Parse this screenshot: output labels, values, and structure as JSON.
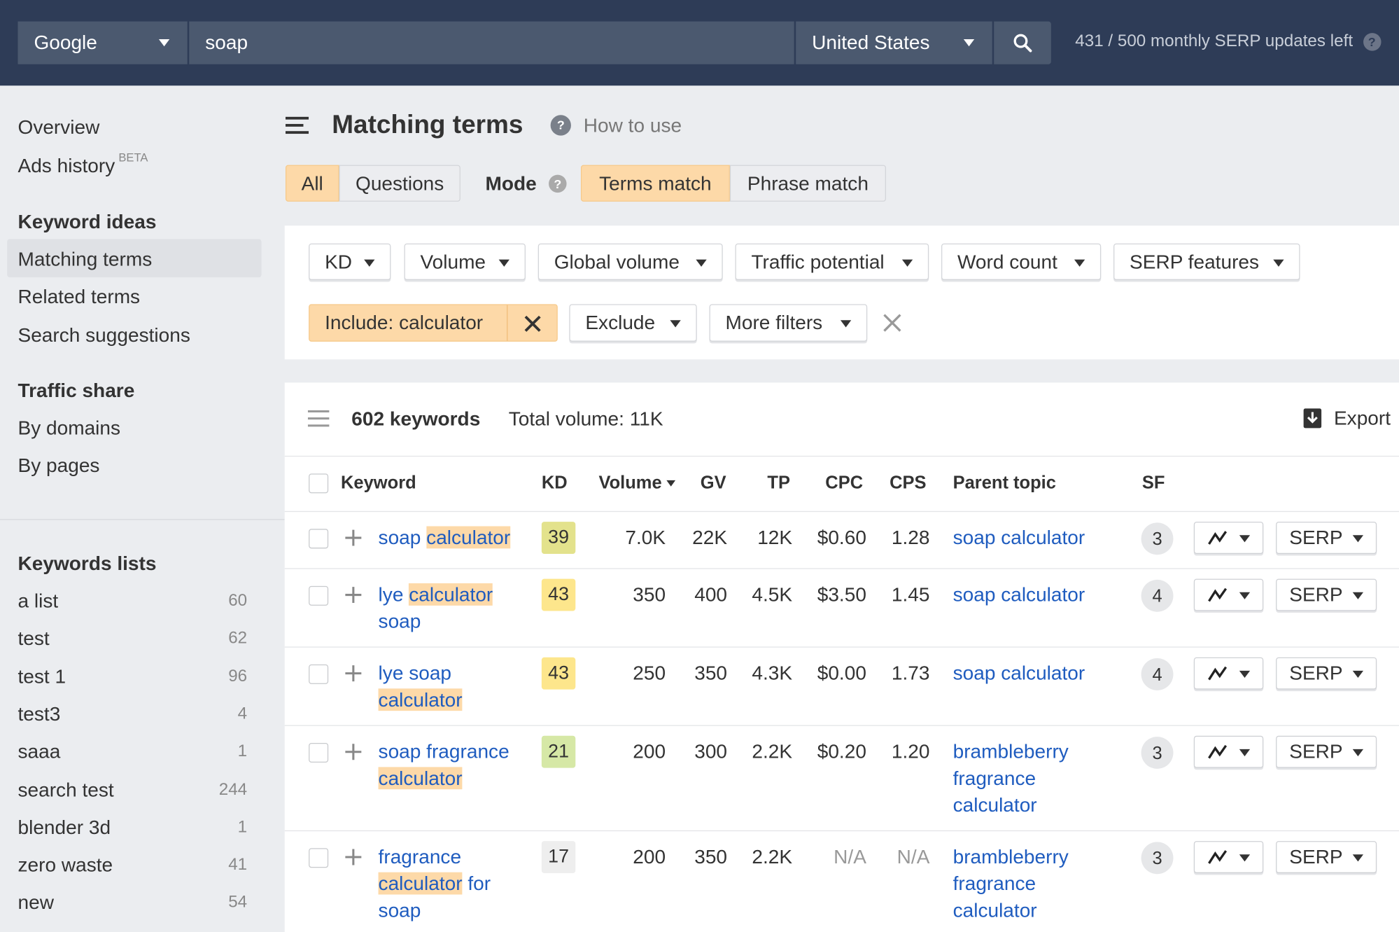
{
  "topbar": {
    "engine": "Google",
    "query": "soap",
    "country": "United States",
    "serp_updates": "431 / 500 monthly SERP updates left"
  },
  "sidebar": {
    "overview": "Overview",
    "ads_history": "Ads history",
    "beta": "BETA",
    "keyword_ideas": "Keyword ideas",
    "matching_terms": "Matching terms",
    "related_terms": "Related terms",
    "search_suggestions": "Search suggestions",
    "traffic_share": "Traffic share",
    "by_domains": "By domains",
    "by_pages": "By pages",
    "keywords_lists": "Keywords lists",
    "lists": [
      {
        "name": "a list",
        "count": "60"
      },
      {
        "name": "test",
        "count": "62"
      },
      {
        "name": "test 1",
        "count": "96"
      },
      {
        "name": "test3",
        "count": "4"
      },
      {
        "name": "saaa",
        "count": "1"
      },
      {
        "name": "search test",
        "count": "244"
      },
      {
        "name": "blender 3d",
        "count": "1"
      },
      {
        "name": "zero waste",
        "count": "41"
      },
      {
        "name": "new",
        "count": "54"
      }
    ]
  },
  "main": {
    "title": "Matching terms",
    "how_to_use": "How to use",
    "tabs": {
      "all": "All",
      "questions": "Questions",
      "mode": "Mode",
      "terms_match": "Terms match",
      "phrase_match": "Phrase match"
    },
    "filters": {
      "kd": "KD",
      "volume": "Volume",
      "global_volume": "Global volume",
      "traffic_potential": "Traffic potential",
      "word_count": "Word count",
      "serp_features": "SERP features",
      "include": "Include: calculator",
      "exclude": "Exclude",
      "more_filters": "More filters"
    },
    "results": {
      "count": "602 keywords",
      "total_volume": "Total volume: 11K",
      "export": "Export"
    },
    "columns": {
      "keyword": "Keyword",
      "kd": "KD",
      "volume": "Volume",
      "gv": "GV",
      "tp": "TP",
      "cpc": "CPC",
      "cps": "CPS",
      "parent_topic": "Parent topic",
      "sf": "SF"
    },
    "serp_label": "SERP",
    "rows": [
      {
        "keyword": [
          {
            "t": "soap ",
            "hl": false
          },
          {
            "t": "calculator",
            "hl": true
          }
        ],
        "kd": "39",
        "kd_color": "#e3e28c",
        "volume": "7.0K",
        "gv": "22K",
        "tp": "12K",
        "cpc": "$0.60",
        "cps": "1.28",
        "parent": "soap calculator",
        "sf": "3"
      },
      {
        "keyword": [
          {
            "t": "lye ",
            "hl": false
          },
          {
            "t": "calculator",
            "hl": true
          },
          {
            "t": " soap",
            "hl": false
          }
        ],
        "kd": "43",
        "kd_color": "#fde68c",
        "volume": "350",
        "gv": "400",
        "tp": "4.5K",
        "cpc": "$3.50",
        "cps": "1.45",
        "parent": "soap calculator",
        "sf": "4"
      },
      {
        "keyword": [
          {
            "t": "lye soap ",
            "hl": false
          },
          {
            "t": "calculator",
            "hl": true
          }
        ],
        "kd": "43",
        "kd_color": "#fde68c",
        "volume": "250",
        "gv": "350",
        "tp": "4.3K",
        "cpc": "$0.00",
        "cps": "1.73",
        "parent": "soap calculator",
        "sf": "4"
      },
      {
        "keyword": [
          {
            "t": "soap fragrance ",
            "hl": false
          },
          {
            "t": "calculator",
            "hl": true
          }
        ],
        "kd": "21",
        "kd_color": "#d6e8a6",
        "volume": "200",
        "gv": "300",
        "tp": "2.2K",
        "cpc": "$0.20",
        "cps": "1.20",
        "parent": "brambleberry fragrance calculator",
        "sf": "3"
      },
      {
        "keyword": [
          {
            "t": "fragrance ",
            "hl": false
          },
          {
            "t": "calculator",
            "hl": true
          },
          {
            "t": " for soap",
            "hl": false
          }
        ],
        "kd": "17",
        "kd_color": "#eeeeee",
        "volume": "200",
        "gv": "350",
        "tp": "2.2K",
        "cpc": "N/A",
        "cps": "N/A",
        "parent": "brambleberry fragrance calculator",
        "sf": "3"
      }
    ]
  },
  "colors": {
    "topbar": "#2e3c57",
    "accent": "#fdd9a8",
    "link": "#1f5cbf"
  }
}
